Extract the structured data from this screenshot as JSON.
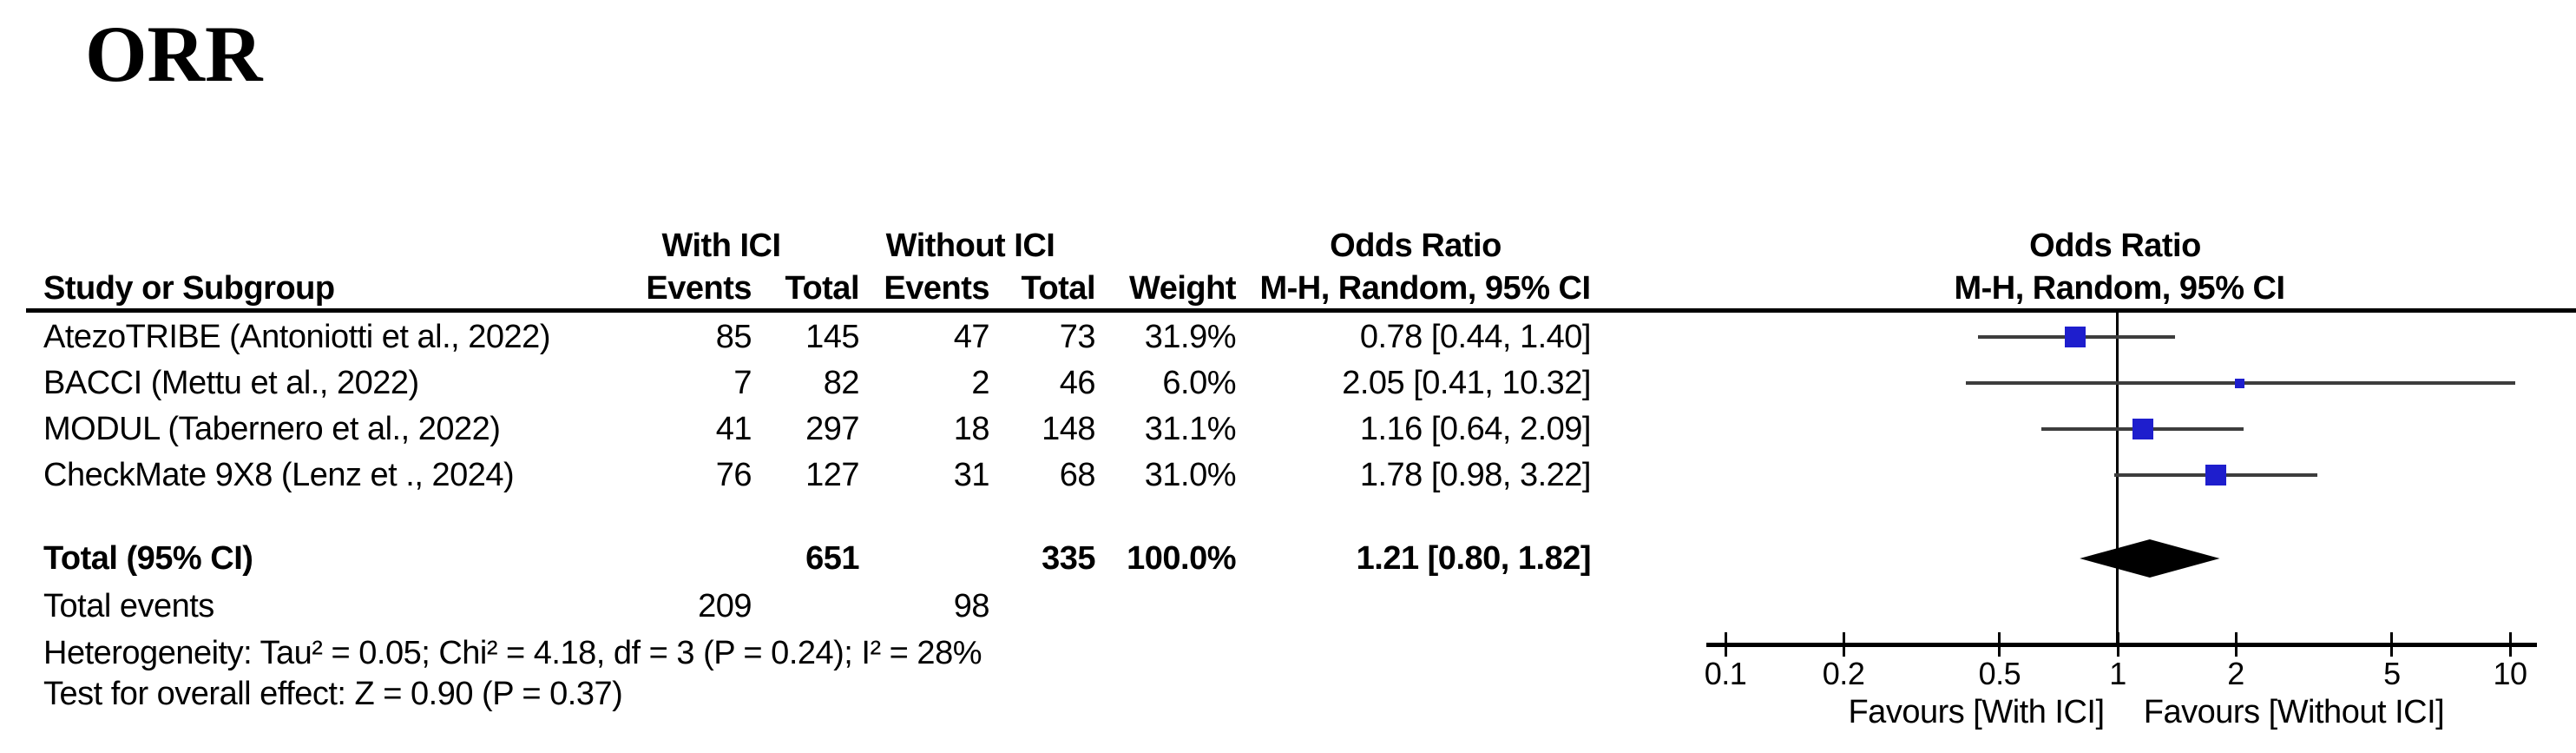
{
  "title": "ORR",
  "colors": {
    "square_blue": "#1e1ecd",
    "diamond_black": "#000000",
    "ci_line": "#3d3d3d",
    "axis_black": "#000000"
  },
  "table": {
    "headers": {
      "group_with": "With ICI",
      "group_without": "Without ICI",
      "study": "Study or Subgroup",
      "events": "Events",
      "total": "Total",
      "weight": "Weight",
      "or_title": "Odds Ratio",
      "or_method": "M-H, Random, 95% CI"
    },
    "total_row": {
      "label": "Total (95% CI)",
      "total_with": "651",
      "total_without": "335",
      "weight": "100.0%",
      "or_text": "1.21 [0.80, 1.82]"
    },
    "total_events_row": {
      "label": "Total events",
      "events_with": "209",
      "events_without": "98"
    },
    "heterogeneity": "Heterogeneity: Tau² = 0.05; Chi² = 4.18, df = 3 (P = 0.24); I² = 28%",
    "overall_effect": "Test for overall effect: Z = 0.90 (P = 0.37)"
  },
  "chart_data": {
    "type": "forest",
    "effect_measure": "Odds Ratio (M-H, Random, 95% CI)",
    "x_scale": "log10",
    "x_range": [
      0.1,
      10
    ],
    "x_ticks": [
      0.1,
      0.2,
      0.5,
      1,
      2,
      5,
      10
    ],
    "favours_left": "Favours [With ICI]",
    "favours_right": "Favours [Without ICI]",
    "studies": [
      {
        "label": "AtezoTRIBE (Antoniotti et al., 2022)",
        "events_with": 85,
        "total_with": 145,
        "events_without": 47,
        "total_without": 73,
        "weight": "31.9%",
        "weight_pct": 31.9,
        "or": 0.78,
        "ci_low": 0.44,
        "ci_high": 1.4,
        "or_text": "0.78 [0.44, 1.40]"
      },
      {
        "label": "BACCI (Mettu et al., 2022)",
        "events_with": 7,
        "total_with": 82,
        "events_without": 2,
        "total_without": 46,
        "weight": "6.0%",
        "weight_pct": 6.0,
        "or": 2.05,
        "ci_low": 0.41,
        "ci_high": 10.32,
        "or_text": "2.05 [0.41, 10.32]"
      },
      {
        "label": "MODUL (Tabernero et al., 2022)",
        "events_with": 41,
        "total_with": 297,
        "events_without": 18,
        "total_without": 148,
        "weight": "31.1%",
        "weight_pct": 31.1,
        "or": 1.16,
        "ci_low": 0.64,
        "ci_high": 2.09,
        "or_text": "1.16 [0.64, 2.09]"
      },
      {
        "label": "CheckMate 9X8 (Lenz et ., 2024)",
        "events_with": 76,
        "total_with": 127,
        "events_without": 31,
        "total_without": 68,
        "weight": "31.0%",
        "weight_pct": 31.0,
        "or": 1.78,
        "ci_low": 0.98,
        "ci_high": 3.22,
        "or_text": "1.78 [0.98, 3.22]"
      }
    ],
    "total": {
      "or": 1.21,
      "ci_low": 0.8,
      "ci_high": 1.82,
      "or_text": "1.21 [0.80, 1.82]"
    }
  }
}
